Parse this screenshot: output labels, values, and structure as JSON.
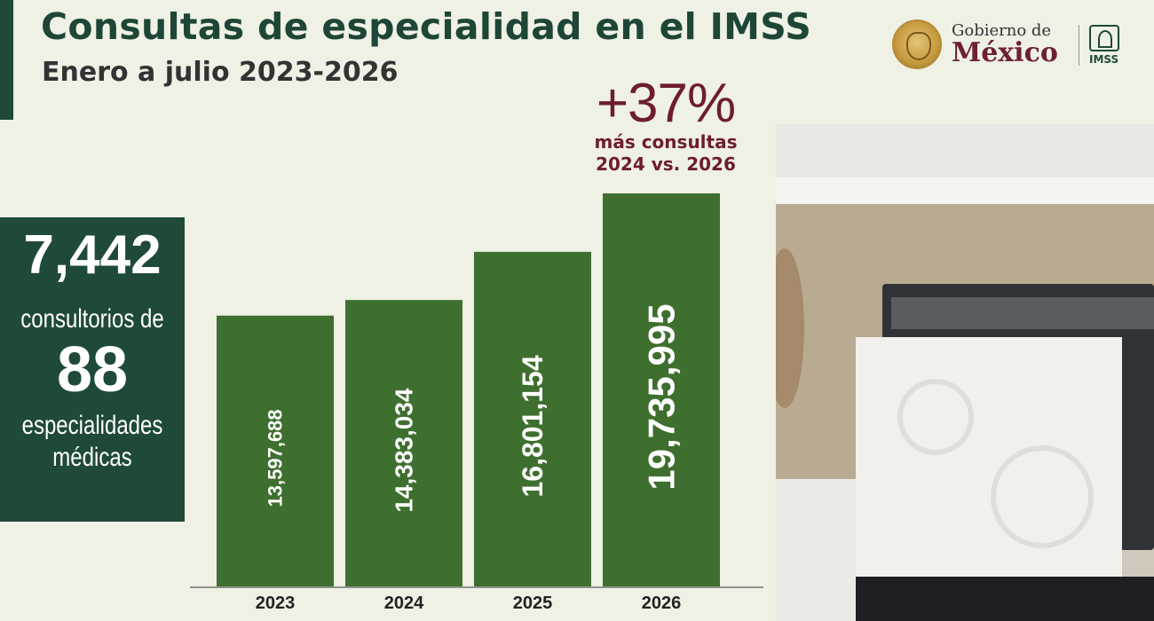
{
  "header": {
    "title": "Consultas de especialidad en el IMSS",
    "subtitle": "Enero a julio 2023-2026"
  },
  "logo": {
    "gobierno_small": "Gobierno de",
    "gobierno_big": "México",
    "imss": "IMSS"
  },
  "stat_box": {
    "consultorios_number": "7,442",
    "consultorios_label": "consultorios de",
    "especialidades_number": "88",
    "especialidades_label_1": "especialidades",
    "especialidades_label_2": "médicas"
  },
  "annotation": {
    "percent": "+37%",
    "line1": "más consultas",
    "line2": "2024 vs. 2026"
  },
  "chart_data": {
    "type": "bar",
    "title": "Consultas de especialidad en el IMSS",
    "subtitle": "Enero a julio 2023-2026",
    "categories": [
      "2023",
      "2024",
      "2025",
      "2026"
    ],
    "values": [
      13597688,
      14383034,
      16801154,
      19735995
    ],
    "value_labels": [
      "13,597,688",
      "14,383,034",
      "16,801,154",
      "19,735,995"
    ],
    "ylim": [
      0,
      20000000
    ],
    "xlabel": "",
    "ylabel": "",
    "grid": false,
    "bar_color": "#3e6f2e",
    "label_color": "#ffffff"
  },
  "colors": {
    "background": "#eef1e4",
    "dark_green": "#1f4a38",
    "bar_green": "#3e6f2e",
    "maroon": "#6e1e28"
  }
}
